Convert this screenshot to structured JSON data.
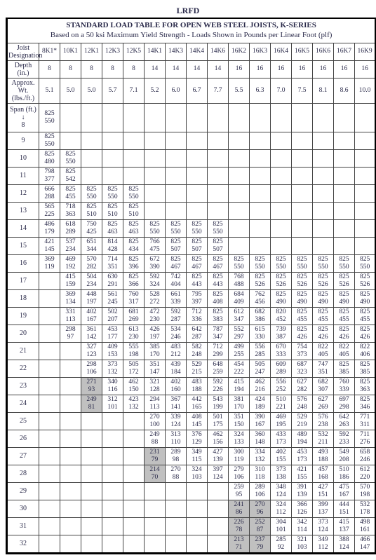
{
  "heading": "LRFD",
  "title1": "STANDARD LOAD TABLE FOR OPEN WEB STEEL JOISTS, K-SERIES",
  "title2": "Based on a 50 ksi Maximum Yield Strength - Loads Shown in Pounds per Linear Foot (plf)",
  "row_labels": {
    "designation": "Joist\nDesignation",
    "depth": "Depth (in.)",
    "wt": "Approx. Wt.\n(lbs./ft.)",
    "span": "Span (ft.)\n↓\n8"
  },
  "columns": [
    "8K1*",
    "10K1",
    "12K1",
    "12K3",
    "12K5",
    "14K1",
    "14K3",
    "14K4",
    "14K6",
    "16K2",
    "16K3",
    "16K4",
    "16K5",
    "16K6",
    "16K7",
    "16K9"
  ],
  "depth": [
    "8",
    "8",
    "8",
    "8",
    "8",
    "14",
    "14",
    "14",
    "14",
    "16",
    "16",
    "16",
    "16",
    "16",
    "16",
    "16"
  ],
  "weight": [
    "5.1",
    "5.0",
    "5.0",
    "5.7",
    "7.1",
    "5.2",
    "6.0",
    "6.7",
    "7.7",
    "5.5",
    "6.3",
    "7.0",
    "7.5",
    "8.1",
    "8.6",
    "10.0"
  ],
  "spans": [
    {
      "label": "",
      "cells": [
        [
          "825",
          "550"
        ]
      ],
      "shade": []
    },
    {
      "label": "9",
      "cells": [
        [
          "825",
          "550"
        ]
      ],
      "shade": []
    },
    {
      "label": "10",
      "cells": [
        [
          "825",
          "480"
        ],
        [
          "825",
          "550"
        ]
      ],
      "shade": []
    },
    {
      "label": "11",
      "cells": [
        [
          "798",
          "377"
        ],
        [
          "825",
          "542"
        ]
      ],
      "shade": []
    },
    {
      "label": "12",
      "cells": [
        [
          "666",
          "288"
        ],
        [
          "825",
          "455"
        ],
        [
          "825",
          "550"
        ],
        [
          "825",
          "550"
        ],
        [
          "825",
          "550"
        ]
      ],
      "shade": []
    },
    {
      "label": "13",
      "cells": [
        [
          "565",
          "225"
        ],
        [
          "718",
          "363"
        ],
        [
          "825",
          "510"
        ],
        [
          "825",
          "510"
        ],
        [
          "825",
          "510"
        ]
      ],
      "shade": []
    },
    {
      "label": "14",
      "cells": [
        [
          "486",
          "179"
        ],
        [
          "618",
          "289"
        ],
        [
          "750",
          "425"
        ],
        [
          "825",
          "463"
        ],
        [
          "825",
          "463"
        ],
        [
          "825",
          "550"
        ],
        [
          "825",
          "550"
        ],
        [
          "825",
          "550"
        ],
        [
          "825",
          "550"
        ]
      ],
      "shade": []
    },
    {
      "label": "15",
      "cells": [
        [
          "421",
          "145"
        ],
        [
          "537",
          "234"
        ],
        [
          "651",
          "344"
        ],
        [
          "814",
          "428"
        ],
        [
          "825",
          "434"
        ],
        [
          "766",
          "475"
        ],
        [
          "825",
          "507"
        ],
        [
          "825",
          "507"
        ],
        [
          "825",
          "507"
        ]
      ],
      "shade": []
    },
    {
      "label": "16",
      "cells": [
        [
          "369",
          "119"
        ],
        [
          "469",
          "192"
        ],
        [
          "570",
          "282"
        ],
        [
          "714",
          "351"
        ],
        [
          "825",
          "396"
        ],
        [
          "672",
          "390"
        ],
        [
          "825",
          "467"
        ],
        [
          "825",
          "467"
        ],
        [
          "825",
          "467"
        ],
        [
          "825",
          "550"
        ],
        [
          "825",
          "550"
        ],
        [
          "825",
          "550"
        ],
        [
          "825",
          "550"
        ],
        [
          "825",
          "550"
        ],
        [
          "825",
          "550"
        ],
        [
          "825",
          "550"
        ]
      ],
      "shade": []
    },
    {
      "label": "17",
      "cells": [
        null,
        [
          "415",
          "159"
        ],
        [
          "504",
          "234"
        ],
        [
          "630",
          "291"
        ],
        [
          "825",
          "366"
        ],
        [
          "592",
          "324"
        ],
        [
          "742",
          "404"
        ],
        [
          "825",
          "443"
        ],
        [
          "825",
          "443"
        ],
        [
          "768",
          "488"
        ],
        [
          "825",
          "526"
        ],
        [
          "825",
          "526"
        ],
        [
          "825",
          "526"
        ],
        [
          "825",
          "526"
        ],
        [
          "825",
          "526"
        ],
        [
          "825",
          "526"
        ]
      ],
      "shade": []
    },
    {
      "label": "18",
      "cells": [
        null,
        [
          "369",
          "134"
        ],
        [
          "448",
          "197"
        ],
        [
          "561",
          "245"
        ],
        [
          "760",
          "317"
        ],
        [
          "528",
          "272"
        ],
        [
          "661",
          "339"
        ],
        [
          "795",
          "397"
        ],
        [
          "825",
          "408"
        ],
        [
          "684",
          "409"
        ],
        [
          "762",
          "456"
        ],
        [
          "825",
          "490"
        ],
        [
          "825",
          "490"
        ],
        [
          "825",
          "490"
        ],
        [
          "825",
          "490"
        ],
        [
          "825",
          "490"
        ]
      ],
      "shade": []
    },
    {
      "label": "19",
      "cells": [
        null,
        [
          "331",
          "113"
        ],
        [
          "402",
          "167"
        ],
        [
          "502",
          "207"
        ],
        [
          "681",
          "269"
        ],
        [
          "472",
          "230"
        ],
        [
          "592",
          "287"
        ],
        [
          "712",
          "336"
        ],
        [
          "825",
          "383"
        ],
        [
          "612",
          "347"
        ],
        [
          "682",
          "386"
        ],
        [
          "820",
          "452"
        ],
        [
          "825",
          "455"
        ],
        [
          "825",
          "455"
        ],
        [
          "825",
          "455"
        ],
        [
          "825",
          "455"
        ]
      ],
      "shade": []
    },
    {
      "label": "20",
      "cells": [
        null,
        [
          "298",
          "97"
        ],
        [
          "361",
          "142"
        ],
        [
          "453",
          "177"
        ],
        [
          "613",
          "230"
        ],
        [
          "426",
          "197"
        ],
        [
          "534",
          "246"
        ],
        [
          "642",
          "287"
        ],
        [
          "787",
          "347"
        ],
        [
          "552",
          "297"
        ],
        [
          "615",
          "330"
        ],
        [
          "739",
          "387"
        ],
        [
          "825",
          "426"
        ],
        [
          "825",
          "426"
        ],
        [
          "825",
          "426"
        ],
        [
          "825",
          "426"
        ]
      ],
      "shade": []
    },
    {
      "label": "21",
      "cells": [
        null,
        null,
        [
          "327",
          "123"
        ],
        [
          "409",
          "153"
        ],
        [
          "555",
          "198"
        ],
        [
          "385",
          "170"
        ],
        [
          "483",
          "212"
        ],
        [
          "582",
          "248"
        ],
        [
          "712",
          "299"
        ],
        [
          "499",
          "255"
        ],
        [
          "556",
          "285"
        ],
        [
          "670",
          "333"
        ],
        [
          "754",
          "373"
        ],
        [
          "822",
          "405"
        ],
        [
          "822",
          "405"
        ],
        [
          "822",
          "406"
        ]
      ],
      "shade": []
    },
    {
      "label": "22",
      "cells": [
        null,
        null,
        [
          "298",
          "106"
        ],
        [
          "373",
          "132"
        ],
        [
          "505",
          "172"
        ],
        [
          "351",
          "147"
        ],
        [
          "439",
          "184"
        ],
        [
          "529",
          "215"
        ],
        [
          "648",
          "259"
        ],
        [
          "454",
          "222"
        ],
        [
          "505",
          "247"
        ],
        [
          "609",
          "289"
        ],
        [
          "687",
          "323"
        ],
        [
          "747",
          "351"
        ],
        [
          "825",
          "385"
        ],
        [
          "825",
          "385"
        ]
      ],
      "shade": []
    },
    {
      "label": "23",
      "cells": [
        null,
        null,
        [
          "271",
          "93"
        ],
        [
          "340",
          "116"
        ],
        [
          "462",
          "150"
        ],
        [
          "321",
          "128"
        ],
        [
          "402",
          "160"
        ],
        [
          "483",
          "188"
        ],
        [
          "592",
          "226"
        ],
        [
          "415",
          "194"
        ],
        [
          "462",
          "216"
        ],
        [
          "556",
          "252"
        ],
        [
          "627",
          "282"
        ],
        [
          "682",
          "307"
        ],
        [
          "760",
          "339"
        ],
        [
          "825",
          "363"
        ]
      ],
      "shade": [
        2
      ]
    },
    {
      "label": "24",
      "cells": [
        null,
        null,
        [
          "249",
          "81"
        ],
        [
          "312",
          "101"
        ],
        [
          "423",
          "132"
        ],
        [
          "294",
          "113"
        ],
        [
          "367",
          "141"
        ],
        [
          "442",
          "165"
        ],
        [
          "543",
          "199"
        ],
        [
          "381",
          "170"
        ],
        [
          "424",
          "189"
        ],
        [
          "510",
          "221"
        ],
        [
          "576",
          "248"
        ],
        [
          "627",
          "269"
        ],
        [
          "697",
          "298"
        ],
        [
          "825",
          "346"
        ]
      ],
      "shade": [
        2
      ]
    },
    {
      "label": "25",
      "cells": [
        null,
        null,
        null,
        null,
        null,
        [
          "270",
          "100"
        ],
        [
          "339",
          "124"
        ],
        [
          "408",
          "145"
        ],
        [
          "501",
          "175"
        ],
        [
          "351",
          "150"
        ],
        [
          "390",
          "167"
        ],
        [
          "469",
          "195"
        ],
        [
          "529",
          "219"
        ],
        [
          "576",
          "238"
        ],
        [
          "642",
          "263"
        ],
        [
          "771",
          "311"
        ]
      ],
      "shade": []
    },
    {
      "label": "26",
      "cells": [
        null,
        null,
        null,
        null,
        null,
        [
          "249",
          "88"
        ],
        [
          "313",
          "110"
        ],
        [
          "376",
          "129"
        ],
        [
          "462",
          "156"
        ],
        [
          "324",
          "133"
        ],
        [
          "360",
          "148"
        ],
        [
          "433",
          "173"
        ],
        [
          "489",
          "194"
        ],
        [
          "532",
          "211"
        ],
        [
          "592",
          "233"
        ],
        [
          "711",
          "276"
        ]
      ],
      "shade": []
    },
    {
      "label": "27",
      "cells": [
        null,
        null,
        null,
        null,
        null,
        [
          "231",
          "79"
        ],
        [
          "289",
          "98"
        ],
        [
          "349",
          "115"
        ],
        [
          "427",
          "139"
        ],
        [
          "300",
          "119"
        ],
        [
          "334",
          "132"
        ],
        [
          "402",
          "155"
        ],
        [
          "453",
          "173"
        ],
        [
          "493",
          "188"
        ],
        [
          "549",
          "208"
        ],
        [
          "658",
          "246"
        ]
      ],
      "shade": [
        5
      ]
    },
    {
      "label": "28",
      "cells": [
        null,
        null,
        null,
        null,
        null,
        [
          "214",
          "70"
        ],
        [
          "270",
          "88"
        ],
        [
          "324",
          "103"
        ],
        [
          "397",
          "124"
        ],
        [
          "279",
          "106"
        ],
        [
          "310",
          "118"
        ],
        [
          "373",
          "138"
        ],
        [
          "421",
          "155"
        ],
        [
          "457",
          "168"
        ],
        [
          "510",
          "186"
        ],
        [
          "612",
          "220"
        ]
      ],
      "shade": [
        5
      ]
    },
    {
      "label": "29",
      "cells": [
        null,
        null,
        null,
        null,
        null,
        null,
        null,
        null,
        null,
        [
          "259",
          "95"
        ],
        [
          "289",
          "106"
        ],
        [
          "348",
          "124"
        ],
        [
          "391",
          "139"
        ],
        [
          "427",
          "151"
        ],
        [
          "475",
          "167"
        ],
        [
          "570",
          "198"
        ]
      ],
      "shade": []
    },
    {
      "label": "30",
      "cells": [
        null,
        null,
        null,
        null,
        null,
        null,
        null,
        null,
        null,
        [
          "241",
          "86"
        ],
        [
          "270",
          "96"
        ],
        [
          "324",
          "112"
        ],
        [
          "366",
          "126"
        ],
        [
          "399",
          "137"
        ],
        [
          "444",
          "151"
        ],
        [
          "532",
          "178"
        ]
      ],
      "shade": [
        9,
        10
      ]
    },
    {
      "label": "31",
      "cells": [
        null,
        null,
        null,
        null,
        null,
        null,
        null,
        null,
        null,
        [
          "226",
          "78"
        ],
        [
          "252",
          "87"
        ],
        [
          "304",
          "101"
        ],
        [
          "342",
          "114"
        ],
        [
          "373",
          "124"
        ],
        [
          "415",
          "137"
        ],
        [
          "498",
          "161"
        ]
      ],
      "shade": [
        9,
        10
      ]
    },
    {
      "label": "32",
      "cells": [
        null,
        null,
        null,
        null,
        null,
        null,
        null,
        null,
        null,
        [
          "213",
          "71"
        ],
        [
          "237",
          "79"
        ],
        [
          "285",
          "92"
        ],
        [
          "321",
          "103"
        ],
        [
          "349",
          "112"
        ],
        [
          "388",
          "124"
        ],
        [
          "466",
          "147"
        ]
      ],
      "shade": [
        9,
        10
      ]
    }
  ]
}
